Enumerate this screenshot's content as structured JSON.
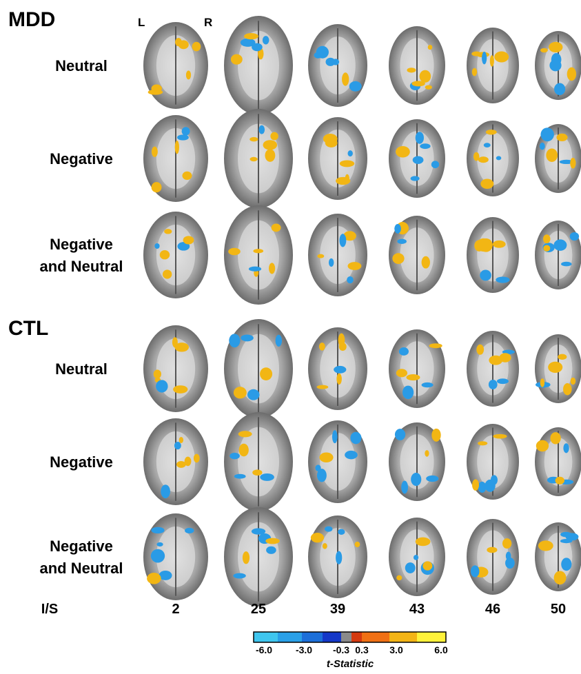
{
  "groups": [
    {
      "title": "MDD",
      "rows": [
        [
          "Neutral"
        ],
        [
          "Negative"
        ],
        [
          "Negative",
          "and Neutral"
        ]
      ]
    },
    {
      "title": "CTL",
      "rows": [
        [
          "Neutral"
        ],
        [
          "Negative"
        ],
        [
          "Negative",
          "and Neutral"
        ]
      ]
    }
  ],
  "orientation": {
    "left": "L",
    "right": "R"
  },
  "slices": {
    "label": "I/S",
    "values": [
      "2",
      "25",
      "39",
      "43",
      "46",
      "50"
    ]
  },
  "colorbar": {
    "ticks": [
      "-6.0",
      "-3.0",
      "-0.3",
      "0.3",
      "3.0",
      "6.0"
    ],
    "label": "t-Statistic"
  }
}
